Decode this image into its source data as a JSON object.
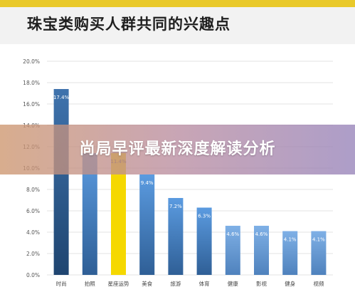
{
  "header": {
    "title": "珠宝类购买人群共同的兴趣点"
  },
  "banner": {
    "text": "尚局早评最新深度解读分析"
  },
  "colors": {
    "accent": "#e9c92a",
    "bar_blue": "#4a86c8",
    "bar_highlight": "#f5d800"
  },
  "chart_data": {
    "type": "bar",
    "title": "",
    "xlabel": "",
    "ylabel": "",
    "categories": [
      "时尚",
      "拍照",
      "星座运势",
      "美食",
      "旅游",
      "体育",
      "健康",
      "影视",
      "健身",
      "视频"
    ],
    "values": [
      17.4,
      11.4,
      11.4,
      9.4,
      7.2,
      6.3,
      4.6,
      4.6,
      4.1,
      4.1
    ],
    "value_labels": [
      "17.4%",
      "",
      "11.4%",
      "9.4%",
      "7.2%",
      "6.3%",
      "4.6%",
      "4.6%",
      "4.1%",
      "4.1%"
    ],
    "highlight_index": 2,
    "ylim": [
      0,
      20
    ],
    "yticks": [
      "0.0%",
      "2.0%",
      "4.0%",
      "6.0%",
      "8.0%",
      "10.0%",
      "12.0%",
      "14.0%",
      "16.0%",
      "18.0%",
      "20.0%"
    ],
    "grid": true
  }
}
